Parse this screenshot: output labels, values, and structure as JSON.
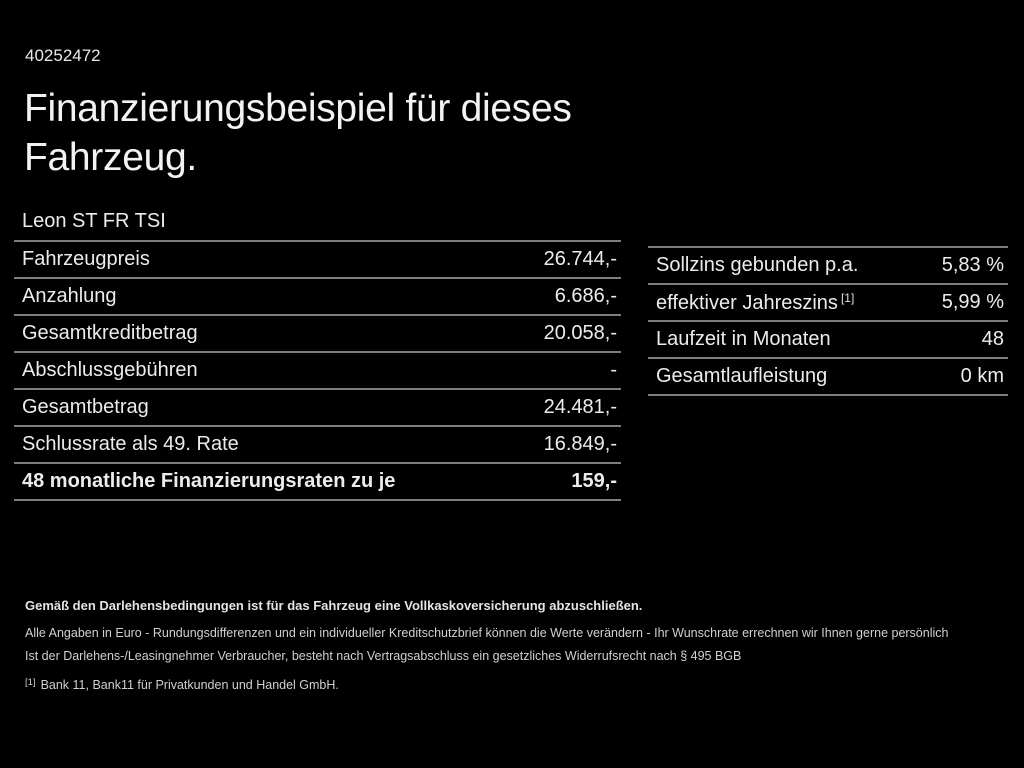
{
  "page": {
    "id_number": "40252472",
    "title_line1": "Finanzierungsbeispiel für dieses",
    "title_line2": "Fahrzeug.",
    "model": "Leon ST FR TSI"
  },
  "left_table": {
    "rows": [
      {
        "label": "Fahrzeugpreis",
        "value": "26.744,-"
      },
      {
        "label": "Anzahlung",
        "value": "6.686,-"
      },
      {
        "label": "Gesamtkreditbetrag",
        "value": "20.058,-"
      },
      {
        "label": "Abschlussgebühren",
        "value": "-"
      },
      {
        "label": "Gesamtbetrag",
        "value": "24.481,-"
      },
      {
        "label": "Schlussrate als 49. Rate",
        "value": "16.849,-"
      },
      {
        "label": "48 monatliche Finanzierungsraten zu je",
        "value": "159,-"
      }
    ]
  },
  "right_table": {
    "rows": [
      {
        "label": "Sollzins gebunden p.a.",
        "value": "5,83 %"
      },
      {
        "label": "effektiver Jahreszins",
        "label_sup": "[1]",
        "value": "5,99 %"
      },
      {
        "label": "Laufzeit in Monaten",
        "value": "48"
      },
      {
        "label": "Gesamtlaufleistung",
        "value": "0 km"
      }
    ]
  },
  "footer": {
    "bold_note": "Gemäß den Darlehensbedingungen ist für das Fahrzeug eine Vollkaskoversicherung abzuschließen.",
    "note_line1": "Alle Angaben in Euro - Rundungsdifferenzen und ein individueller Kreditschutzbrief können die Werte verändern - Ihr Wunschrate errechnen wir Ihnen gerne persönlich",
    "note_line2": "Ist der Darlehens-/Leasingnehmer Verbraucher, besteht nach Vertragsabschluss ein gesetzliches Widerrufsrecht nach § 495 BGB",
    "footnote_marker": "[1]",
    "footnote_text": "Bank 11, Bank11 für Privatkunden und Handel GmbH."
  },
  "colors": {
    "background": "#000000",
    "text": "#ececec",
    "separator": "#7e7e7e"
  }
}
